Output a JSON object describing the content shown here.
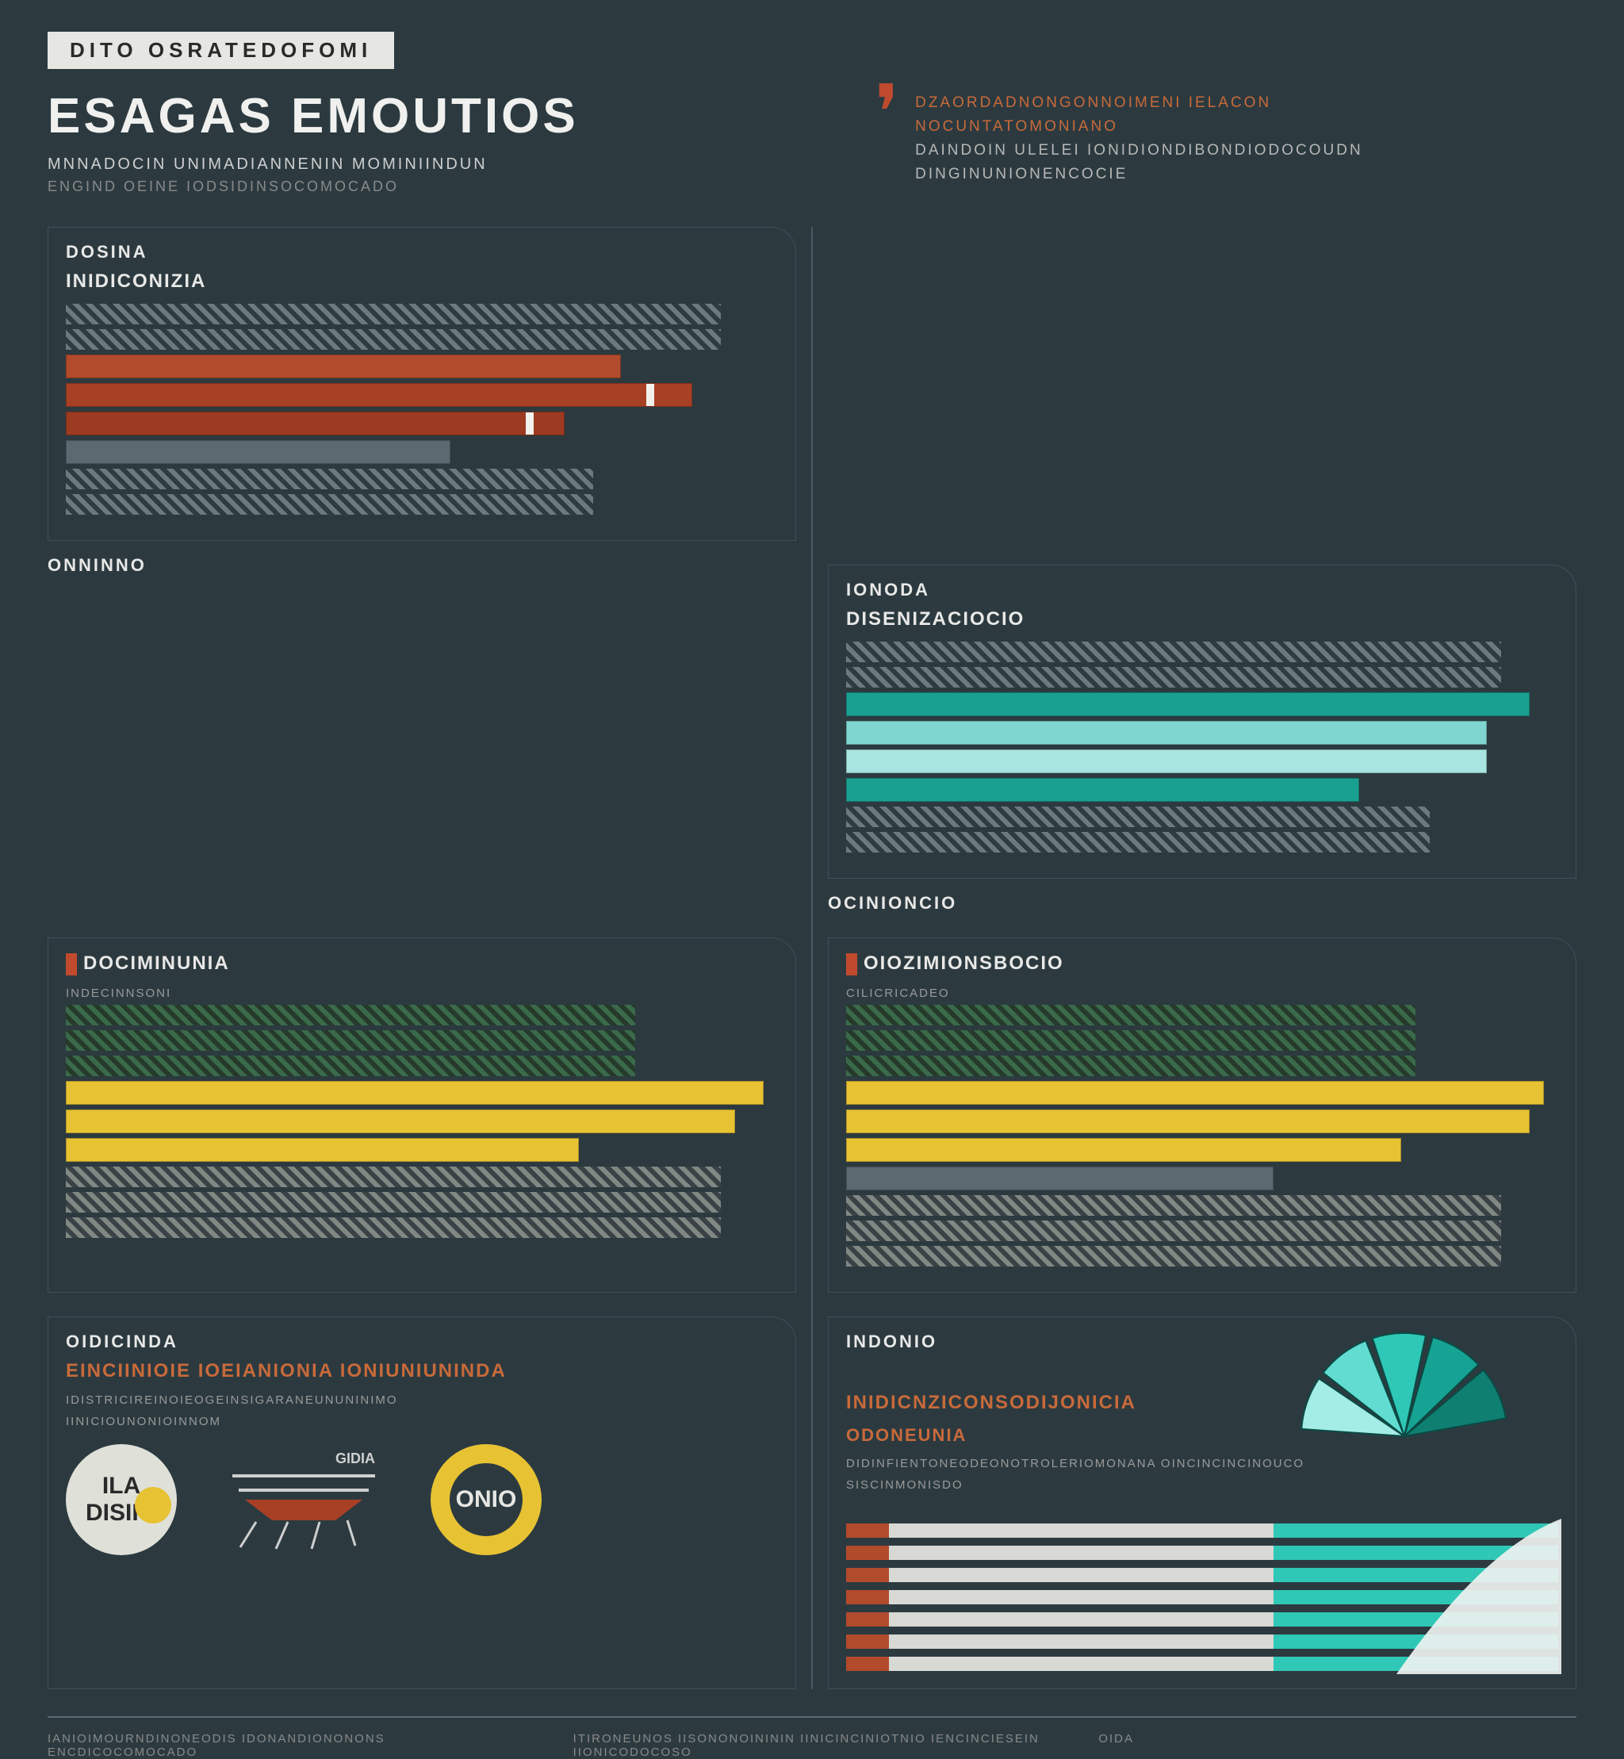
{
  "page": {
    "background_color": "#2c3a40",
    "text_color": "#e8e8e8",
    "divider_color": "#4a5a60",
    "panel_border_color": "#3f5056"
  },
  "header": {
    "tag": "DITO OSRATEDOFOMI",
    "tag_bg": "#e6e6e2",
    "tag_fg": "#2a2a2a",
    "title": "ESAGAS EMOUTIOS",
    "subtitle1": "MNNADOCIN UNIMADIANNENIN MOMINIINDUN",
    "subtitle2": "ENGIND OEINE IODSIDINSOCOMOCADO",
    "quote_mark_color": "#c04a2e",
    "quote_lines": [
      {
        "text": "DZAORDADNONGONNOIMENI IELACON",
        "accent": true
      },
      {
        "text": "NOCUNTATOMONIANO",
        "accent": true
      },
      {
        "text": "DAINDOIN ULELEI IONIDIONDIBONDIODOCOUDN",
        "accent": false
      },
      {
        "text": "DINGINUNIONENCOCIE",
        "accent": false
      }
    ]
  },
  "panels": [
    {
      "kicker": "DOSINA",
      "subtitle": "INIDICONIZIA",
      "subtitle_color": "#e8e8e6",
      "type": "hbar",
      "bars": [
        {
          "kind": "hatch",
          "width_pct": 92,
          "h1": "#6a7a7e",
          "h2": "#2e3c42"
        },
        {
          "kind": "hatch",
          "width_pct": 92,
          "h1": "#6a7a7e",
          "h2": "#2e3c42"
        },
        {
          "kind": "solid",
          "width_pct": 78,
          "color": "#b24a2c",
          "marked": false
        },
        {
          "kind": "solid",
          "width_pct": 88,
          "color": "#a84026",
          "marked": true
        },
        {
          "kind": "solid",
          "width_pct": 70,
          "color": "#9c3a22",
          "marked": true
        },
        {
          "kind": "solid",
          "width_pct": 54,
          "color": "#5a6a70",
          "marked": false
        },
        {
          "kind": "hatch",
          "width_pct": 74,
          "h1": "#6a7a7e",
          "h2": "#2e3c42"
        },
        {
          "kind": "hatch",
          "width_pct": 74,
          "h1": "#6a7a7e",
          "h2": "#2e3c42"
        }
      ],
      "outside_label": "ONNINNO"
    },
    {
      "kicker": "IONODA",
      "subtitle": "DISENIZACIOCIO",
      "subtitle_color": "#e8e8e6",
      "type": "hbar",
      "bars": [
        {
          "kind": "hatch",
          "width_pct": 92,
          "h1": "#6a7a7e",
          "h2": "#2e3c42"
        },
        {
          "kind": "hatch",
          "width_pct": 92,
          "h1": "#6a7a7e",
          "h2": "#2e3c42"
        },
        {
          "kind": "solid",
          "width_pct": 96,
          "color": "#1aa090",
          "marked": false
        },
        {
          "kind": "solid",
          "width_pct": 90,
          "color": "#7fd6d0",
          "marked": false
        },
        {
          "kind": "solid",
          "width_pct": 90,
          "color": "#a8e4e0",
          "marked": false
        },
        {
          "kind": "solid",
          "width_pct": 72,
          "color": "#1aa090",
          "marked": false
        },
        {
          "kind": "hatch",
          "width_pct": 82,
          "h1": "#6a7a7e",
          "h2": "#2e3c42"
        },
        {
          "kind": "hatch",
          "width_pct": 82,
          "h1": "#6a7a7e",
          "h2": "#2e3c42"
        }
      ],
      "outside_label": "OCINIONCIO"
    },
    {
      "kicker": "",
      "subtitle": "DOCIMINUNIA",
      "subtitle_accent_tab": true,
      "subtitle_color": "#e8e8e6",
      "tiny": "INDECINNSONI",
      "type": "hbar",
      "bars": [
        {
          "kind": "hatch",
          "width_pct": 80,
          "h1": "#3a6a4a",
          "h2": "#263a2c"
        },
        {
          "kind": "hatch",
          "width_pct": 80,
          "h1": "#3a6a4a",
          "h2": "#263a2c"
        },
        {
          "kind": "hatch",
          "width_pct": 80,
          "h1": "#3a6a4a",
          "h2": "#263a2c"
        },
        {
          "kind": "solid",
          "width_pct": 98,
          "color": "#e7c233",
          "marked": false
        },
        {
          "kind": "solid",
          "width_pct": 94,
          "color": "#e7c233",
          "marked": false
        },
        {
          "kind": "solid",
          "width_pct": 72,
          "color": "#e7c233",
          "marked": false
        },
        {
          "kind": "hatch",
          "width_pct": 92,
          "h1": "#808884",
          "h2": "#3a4246"
        },
        {
          "kind": "hatch",
          "width_pct": 92,
          "h1": "#808884",
          "h2": "#3a4246"
        },
        {
          "kind": "hatch",
          "width_pct": 92,
          "h1": "#808884",
          "h2": "#3a4246"
        }
      ],
      "outside_label": ""
    },
    {
      "kicker": "",
      "subtitle": "OIOZIMIONSBOCIO",
      "subtitle_accent_tab": true,
      "subtitle_color": "#e8e8e6",
      "tiny": "CILICRICADEO",
      "type": "hbar",
      "bars": [
        {
          "kind": "hatch",
          "width_pct": 80,
          "h1": "#3a6a4a",
          "h2": "#263a2c"
        },
        {
          "kind": "hatch",
          "width_pct": 80,
          "h1": "#3a6a4a",
          "h2": "#263a2c"
        },
        {
          "kind": "hatch",
          "width_pct": 80,
          "h1": "#3a6a4a",
          "h2": "#263a2c"
        },
        {
          "kind": "solid",
          "width_pct": 98,
          "color": "#e7c233",
          "marked": false
        },
        {
          "kind": "solid",
          "width_pct": 96,
          "color": "#e7c233",
          "marked": false
        },
        {
          "kind": "solid",
          "width_pct": 78,
          "color": "#e7c233",
          "marked": false
        },
        {
          "kind": "solid",
          "width_pct": 60,
          "color": "#5a6a70",
          "marked": false
        },
        {
          "kind": "hatch",
          "width_pct": 92,
          "h1": "#808884",
          "h2": "#3a4246"
        },
        {
          "kind": "hatch",
          "width_pct": 92,
          "h1": "#808884",
          "h2": "#3a4246"
        },
        {
          "kind": "hatch",
          "width_pct": 92,
          "h1": "#808884",
          "h2": "#3a4246"
        }
      ],
      "outside_label": ""
    },
    {
      "kicker": "OIDICINDA",
      "type": "badges",
      "headline": "EINCIINIOIE IOEIANIONIA IONIUNIUNINDA",
      "headline_color": "#c96a3a",
      "body1": "IDISTRICIREINOIEOGEINSIGARANEUNUNINIMO",
      "body2": "IINICIOUNONIOINNOM",
      "circle_badge": {
        "bg": "#dfe0d8",
        "text_top": "ILA",
        "text_bot": "DISIIO",
        "text_color": "#2a2a2a",
        "dot_color": "#e7c233"
      },
      "boat": {
        "hull_color": "#a84026",
        "line_color": "#cfcfcf",
        "label": "GIDIA"
      },
      "donut": {
        "ring_color": "#e7c233",
        "label": "ONIO"
      }
    },
    {
      "kicker": "INDONIO",
      "type": "fan_stripes",
      "headline": "INIDICNZICONSODIJONICIA",
      "headline_color": "#c96a3a",
      "headline2": "ODONEUNIA",
      "body1": "DIDINFIENTONEODEONOTROLERIOMONANA OINCINCINCINOUCO",
      "body2": "SISCINMONISDO",
      "fan": {
        "petal_colors": [
          "#0f7f72",
          "#16a394",
          "#2fc7b6",
          "#62dcd0",
          "#a4ece6"
        ],
        "border_color": "#0a4a44"
      },
      "stripes": {
        "count": 7,
        "left_color": "#b24a2c",
        "mid_color": "#d8d8d4",
        "right_color": "#2fc7b6",
        "bg": "#2c3a40"
      },
      "sail_color": "#eef2f0"
    }
  ],
  "footer": {
    "cols": [
      "IANIOIMOURNDINONEODIS IDONANDIONONONS ENCDICOCOMOCADO",
      "ITIRONEUNOS IISONONOINININ IINICINCINIOTNIO IENCINCIESEIN IIONICODOCOSO",
      "OIDA"
    ]
  }
}
